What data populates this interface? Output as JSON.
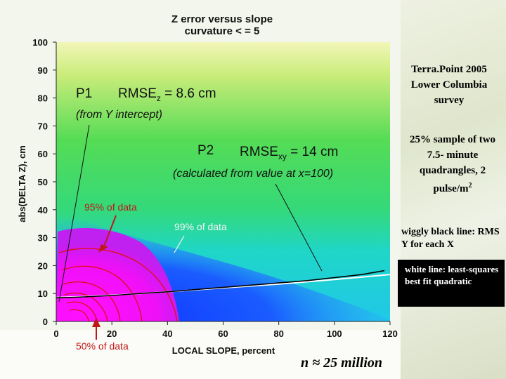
{
  "chart_data": {
    "type": "heatmap",
    "title": "Z error versus slope",
    "subtitle": "curvature < = 5",
    "xlabel": "LOCAL SLOPE, percent",
    "ylabel": "abs(DELTA Z), cm",
    "xlim": [
      0,
      120
    ],
    "ylim": [
      0,
      100
    ],
    "x_ticks": [
      0,
      20,
      40,
      60,
      80,
      100,
      120
    ],
    "y_ticks": [
      0,
      10,
      20,
      30,
      40,
      50,
      60,
      70,
      80,
      90,
      100
    ],
    "grid": false,
    "colors": {
      "background_density": "#4bd95a",
      "high_density": "#ff00ff",
      "mid_density": "#1a4dff",
      "contour": "#e01020",
      "rms_line": "#000000",
      "fit_line": "#ffffff"
    },
    "series": [
      {
        "name": "wiggly black line: RMS Y for each X",
        "x": [
          0,
          5,
          10,
          20,
          30,
          40,
          50,
          60,
          70,
          80,
          90,
          100,
          110,
          118
        ],
        "y": [
          8.5,
          8.6,
          8.8,
          9.3,
          10.0,
          10.6,
          11.4,
          12.2,
          13.0,
          13.8,
          14.6,
          15.7,
          16.8,
          18.2
        ]
      },
      {
        "name": "white line: least-squares best fit quadratic",
        "x": [
          0,
          10,
          20,
          30,
          40,
          50,
          60,
          70,
          80,
          90,
          100,
          110,
          120
        ],
        "y": [
          8.6,
          8.9,
          9.4,
          10.0,
          10.6,
          11.3,
          12.0,
          12.7,
          13.4,
          14.2,
          15.0,
          15.9,
          16.8
        ]
      }
    ],
    "annotations": {
      "p1_label": "P1",
      "p1_stat_prefix": "RMSE",
      "p1_stat_sub": "z",
      "p1_stat_value": " = 8.6 cm",
      "p1_note": "(from Y intercept)",
      "p2_label": "P2",
      "p2_stat_prefix": "RMSE",
      "p2_stat_sub": "xy",
      "p2_stat_value": " = 14 cm",
      "p2_note": "(calculated from value at x=100)",
      "pct95": "95% of data",
      "pct99": "99% of data",
      "pct50": "50% of data"
    }
  },
  "notes": {
    "survey": "Terra.Point 2005 Lower Columbia survey",
    "sample_pre": "25% sample of two 7.5- minute quadrangles, 2 pulse/m",
    "sample_sup": "2",
    "wiggly": "wiggly black line: RMS Y for each X",
    "white_line": "white line: least-squares best fit quadratic",
    "n": "n ≈ 25 million"
  }
}
